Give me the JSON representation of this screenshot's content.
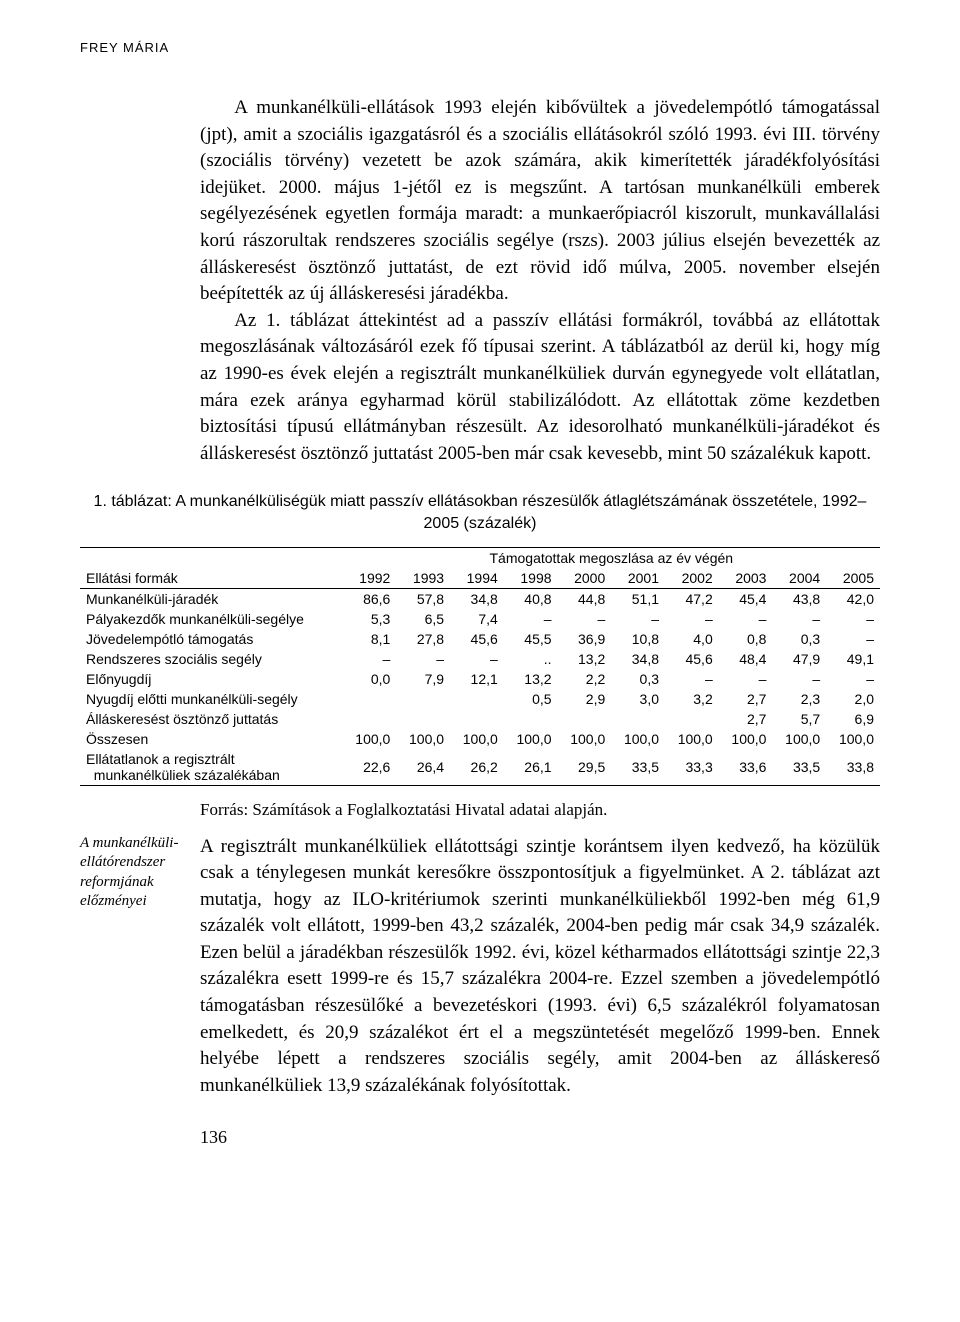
{
  "running_head": "FREY MÁRIA",
  "para1": "A munkanélküli-ellátások 1993 elején kibővültek a jövedelempótló támogatással (jpt), amit a szociális igazgatásról és a szociális ellátásokról szóló 1993. évi III. törvény (szociális törvény) vezetett be azok számára, akik kimerítették járadékfolyósítási idejüket. 2000. május 1-jétől ez is megszűnt. A tartósan munkanélküli emberek segélyezésének egyetlen formája maradt: a munkaerőpiacról kiszorult, munkavállalási korú rászorultak rendszeres szociális segélye (rszs). 2003 július elsején bevezették az álláskeresést ösztönző juttatást, de ezt rövid idő múlva, 2005. november elsején beépítették az új álláskeresési járadékba.",
  "para2": "Az 1. táblázat áttekintést ad a passzív ellátási formákról, továbbá az ellátottak megoszlásának változásáról ezek fő típusai szerint. A táblázatból az derül ki, hogy míg az 1990-es évek elején a regisztrált munkanélküliek durván egynegyede volt ellátatlan, mára ezek aránya egyharmad körül stabilizálódott. Az ellátottak zöme kezdetben biztosítási típusú ellátmányban részesült. Az idesorolható munkanélküli-járadékot és álláskeresést ösztönző juttatást 2005-ben már csak kevesebb, mint 50 százalékuk kapott.",
  "table": {
    "caption": "1. táblázat: A munkanélküliségük miatt passzív ellátásokban részesülők átlaglétszámának összetétele, 1992–2005 (százalék)",
    "stub_head": "Ellátási formák",
    "span_head": "Támogatottak megoszlása az év végén",
    "years": [
      "1992",
      "1993",
      "1994",
      "1998",
      "2000",
      "2001",
      "2002",
      "2003",
      "2004",
      "2005"
    ],
    "rows": [
      {
        "label": "Munkanélküli-járadék",
        "vals": [
          "86,6",
          "57,8",
          "34,8",
          "40,8",
          "44,8",
          "51,1",
          "47,2",
          "45,4",
          "43,8",
          "42,0"
        ]
      },
      {
        "label": "Pályakezdők munkanélküli-segélye",
        "vals": [
          "5,3",
          "6,5",
          "7,4",
          "–",
          "–",
          "–",
          "–",
          "–",
          "–",
          "–"
        ]
      },
      {
        "label": "Jövedelempótló támogatás",
        "vals": [
          "8,1",
          "27,8",
          "45,6",
          "45,5",
          "36,9",
          "10,8",
          "4,0",
          "0,8",
          "0,3",
          "–"
        ]
      },
      {
        "label": "Rendszeres szociális segély",
        "vals": [
          "–",
          "–",
          "–",
          "..",
          "13,2",
          "34,8",
          "45,6",
          "48,4",
          "47,9",
          "49,1"
        ]
      },
      {
        "label": "Előnyugdíj",
        "vals": [
          "0,0",
          "7,9",
          "12,1",
          "13,2",
          "2,2",
          "0,3",
          "–",
          "–",
          "–",
          "–"
        ]
      },
      {
        "label": "Nyugdíj előtti munkanélküli-segély",
        "vals": [
          "",
          "",
          "",
          "0,5",
          "2,9",
          "3,0",
          "3,2",
          "2,7",
          "2,3",
          "2,0"
        ]
      },
      {
        "label": "Álláskeresést ösztönző juttatás",
        "vals": [
          "",
          "",
          "",
          "",
          "",
          "",
          "",
          "2,7",
          "5,7",
          "6,9"
        ]
      },
      {
        "label": "Összesen",
        "vals": [
          "100,0",
          "100,0",
          "100,0",
          "100,0",
          "100,0",
          "100,0",
          "100,0",
          "100,0",
          "100,0",
          "100,0"
        ]
      },
      {
        "label": "Ellátatlanok a regisztrált munkanélküliek százalékában",
        "vals": [
          "22,6",
          "26,4",
          "26,2",
          "26,1",
          "29,5",
          "33,5",
          "33,3",
          "33,6",
          "33,5",
          "33,8"
        ]
      }
    ]
  },
  "source": "Forrás: Számítások a Foglalkoztatási Hivatal adatai alapján.",
  "margin_note": "A munkanélküli-ellátórendszer reformjának előzményei",
  "para3": "A regisztrált munkanélküliek ellátottsági szintje korántsem ilyen kedvező, ha közülük csak a ténylegesen munkát keresőkre összpontosítjuk a figyelmünket. A 2. táblázat azt mutatja, hogy az ILO-kritériumok szerinti munkanélküliekből 1992-ben még 61,9 százalék volt ellátott, 1999-ben 43,2 százalék, 2004-ben pedig már csak 34,9 százalék. Ezen belül a járadékban részesülők 1992. évi, közel kétharmados ellátottsági szintje 22,3 százalékra esett 1999-re és 15,7 százalékra 2004-re. Ezzel szemben a jövedelempótló támogatásban részesülőké a bevezetéskori (1993. évi) 6,5 százalékról folyamatosan emelkedett, és 20,9 százalékot ért el a megszüntetését megelőző 1999-ben. Ennek helyébe lépett a rendszeres szociális segély, amit 2004-ben az álláskereső munkanélküliek 13,9 százalékának folyósítottak.",
  "page_number": "136"
}
